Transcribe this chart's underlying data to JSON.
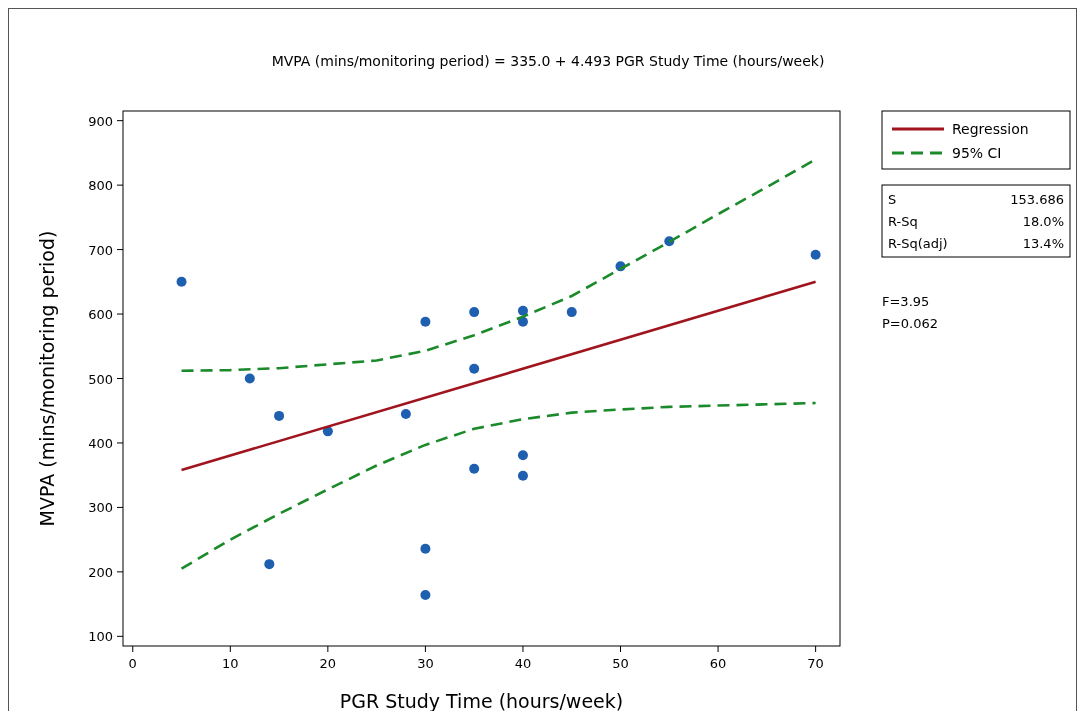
{
  "chart_data": {
    "type": "scatter",
    "title": "MVPA (mins/monitoring period) = 335.0 + 4.493 PGR Study Time (hours/week)",
    "xlabel": "PGR Study Time (hours/week)",
    "ylabel": "MVPA (mins/monitoring period)",
    "xlim": [
      -1,
      72.5
    ],
    "xticks": [
      0,
      10,
      20,
      30,
      40,
      50,
      60,
      70
    ],
    "ylim": [
      85,
      915
    ],
    "yticks": [
      100,
      200,
      300,
      400,
      500,
      600,
      700,
      800,
      900
    ],
    "grid": false,
    "legend": "top right",
    "series": [
      {
        "color": "#1f5fb0",
        "marker": "circle",
        "x": [
          5,
          12,
          14,
          15,
          20,
          28,
          30,
          30,
          30,
          35,
          35,
          35,
          40,
          40,
          40,
          40,
          45,
          50,
          55,
          70
        ],
        "values": [
          650,
          500,
          212,
          442,
          418,
          445,
          588,
          236,
          164,
          603,
          515,
          360,
          605,
          588,
          381,
          349,
          603,
          674,
          713,
          692
        ]
      },
      {
        "type": "line",
        "name": "Regression",
        "color": "#a0141e",
        "line_style": "solid",
        "marker": "none",
        "x": [
          5,
          70
        ],
        "values": [
          358,
          650
        ]
      },
      {
        "type": "line",
        "name": "95% CI",
        "color": "#1a8a2a",
        "line_style": "dashed",
        "marker": "none",
        "x": [
          5,
          10,
          15,
          20,
          25,
          30,
          35,
          40,
          45,
          50,
          55,
          60,
          65,
          70
        ],
        "values": [
          512,
          513,
          516,
          522,
          528,
          543,
          567,
          596,
          628,
          670,
          712,
          755,
          797,
          840
        ]
      },
      {
        "type": "line",
        "color": "#1a8a2a",
        "line_style": "dashed",
        "marker": "none",
        "x": [
          5,
          10,
          15,
          20,
          25,
          30,
          35,
          40,
          45,
          50,
          55,
          60,
          65,
          70
        ],
        "values": [
          205,
          250,
          290,
          328,
          365,
          397,
          422,
          437,
          447,
          452,
          456,
          458,
          460,
          462
        ]
      }
    ],
    "annotations": [
      "S 153.686",
      "R-Sq 18.0%",
      "R-Sq(adj) 13.4%",
      "F=3.95",
      "P=0.062"
    ]
  }
}
